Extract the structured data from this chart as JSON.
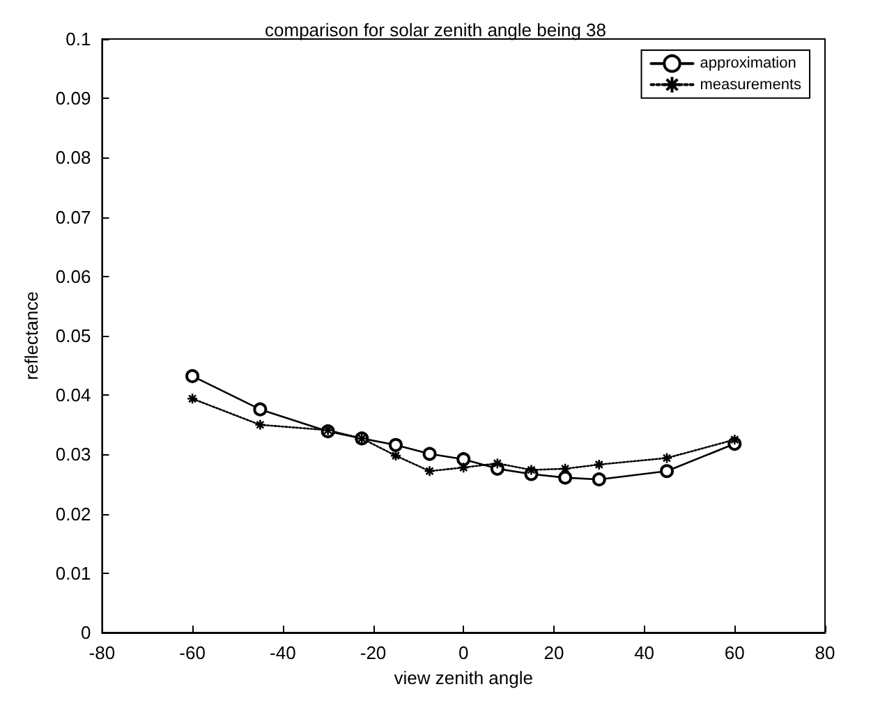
{
  "chart_data": {
    "type": "line",
    "title": "comparison for solar zenith angle being 38",
    "xlabel": "view zenith angle",
    "ylabel": "reflectance",
    "x": [
      -60,
      -45,
      -30,
      -22.5,
      -15,
      -7.5,
      0,
      7.5,
      15,
      22.5,
      30,
      45,
      60
    ],
    "xlim": [
      -80,
      80
    ],
    "xticks": [
      -80,
      -60,
      -40,
      -20,
      0,
      20,
      40,
      60,
      80
    ],
    "ylim": [
      0,
      0.1
    ],
    "yticks": [
      0,
      0.01,
      0.02,
      0.03,
      0.04,
      0.05,
      0.06,
      0.07,
      0.08,
      0.09,
      0.1
    ],
    "grid": false,
    "legend": "top right",
    "series": [
      {
        "name": "approximation",
        "color": "#000000",
        "marker": "circle",
        "line_style": "solid",
        "values": [
          0.0432,
          0.0376,
          0.0339,
          0.0327,
          0.0316,
          0.0301,
          0.0292,
          0.0276,
          0.0267,
          0.0261,
          0.0258,
          0.0272,
          0.0318
        ]
      },
      {
        "name": "measurements",
        "color": "#000000",
        "marker": "cross",
        "line_style": "dotted",
        "values": [
          0.0394,
          0.035,
          0.0341,
          0.0327,
          0.0298,
          0.0272,
          0.0278,
          0.0285,
          0.0274,
          0.0276,
          0.0283,
          0.0294,
          0.0325
        ]
      }
    ]
  }
}
